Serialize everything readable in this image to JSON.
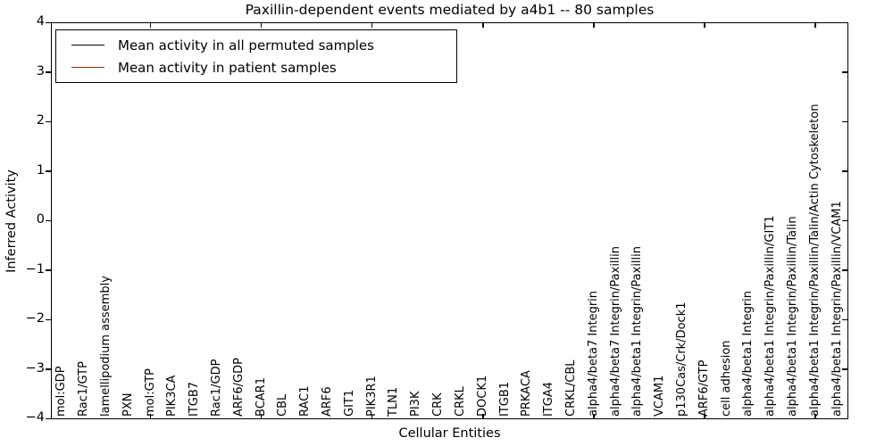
{
  "title": "Paxillin-dependent events mediated by a4b1 -- 80 samples",
  "axes": {
    "ylabel": "Inferred Activity",
    "xlabel": "Cellular Entities",
    "yticks": [
      "4",
      "3",
      "2",
      "1",
      "0",
      "−1",
      "−2",
      "−3",
      "−4"
    ],
    "ylim": [
      -4,
      4
    ]
  },
  "legend": {
    "items": [
      {
        "label": "Mean activity in all permuted samples",
        "color": "#000000"
      },
      {
        "label": "Mean activity in patient samples",
        "color": "#ff0000"
      }
    ]
  },
  "colors": {
    "patient_line": "#ff0000",
    "permuted_line": "#000000",
    "patient_band": "rgba(228,55,55,0.38)",
    "patient_band_inner": "rgba(225,35,35,0.45)",
    "permuted_band": "rgba(0,0,0,0.17)",
    "zero_line": "#000000"
  },
  "chart_data": {
    "type": "area",
    "title": "Paxillin-dependent events mediated by a4b1 -- 80 samples",
    "xlabel": "Cellular Entities",
    "ylabel": "Inferred Activity",
    "ylim": [
      -4,
      4
    ],
    "grid": false,
    "legend_position": "upper left",
    "categories": [
      "mol:GDP",
      "Rac1/GTP",
      "lamellipodium assembly",
      "PXN",
      "mol:GTP",
      "PIK3CA",
      "ITGB7",
      "Rac1/GDP",
      "ARF6/GDP",
      "BCAR1",
      "CBL",
      "RAC1",
      "ARF6",
      "GIT1",
      "PIK3R1",
      "TLN1",
      "PI3K",
      "CRK",
      "CRKL",
      "DOCK1",
      "ITGB1",
      "PRKACA",
      "ITGA4",
      "CRKL/CBL",
      "alpha4/beta7 Integrin",
      "alpha4/beta7 Integrin/Paxillin",
      "alpha4/beta1 Integrin/Paxillin",
      "VCAM1",
      "p130Cas/Crk/Dock1",
      "ARF6/GTP",
      "cell adhesion",
      "alpha4/beta1 Integrin",
      "alpha4/beta1 Integrin/Paxillin/GIT1",
      "alpha4/beta1 Integrin/Paxillin/Talin",
      "alpha4/beta1 Integrin/Paxillin/Talin/Actin Cytoskeleton",
      "alpha4/beta1 Integrin/Paxillin/VCAM1"
    ],
    "series": [
      {
        "name": "Mean activity in all permuted samples",
        "color": "#000000",
        "values": [
          0,
          0,
          0,
          0,
          0,
          0,
          0,
          0,
          0,
          0,
          0,
          0,
          0,
          0,
          0,
          0,
          0,
          0,
          0,
          0,
          0,
          0,
          0,
          0,
          0,
          0,
          0,
          0,
          0,
          0,
          0,
          0,
          0,
          0,
          0,
          0
        ]
      },
      {
        "name": "Mean activity in patient samples",
        "color": "#ff0000",
        "values": [
          -0.03,
          -0.04,
          -0.04,
          -0.03,
          -0.02,
          -0.02,
          -0.02,
          -0.01,
          -0.01,
          -0.01,
          -0.01,
          -0.01,
          -0.01,
          -0.01,
          -0.01,
          0,
          0,
          0,
          0,
          0,
          0,
          0,
          0,
          0.01,
          0.01,
          0.01,
          0.01,
          0.01,
          0.01,
          0.02,
          0.03,
          0.03,
          0.04,
          0.04,
          0.05,
          0.04
        ]
      }
    ],
    "patient_band_upper": [
      0.1,
      0.13,
      0.13,
      0.08,
      0.06,
      0.07,
      0.07,
      0.05,
      0.04,
      0.04,
      0.04,
      0.04,
      0.04,
      0.04,
      0.04,
      0.05,
      0.06,
      0.04,
      0.04,
      0.04,
      0.04,
      0.05,
      0.11,
      0.07,
      0.09,
      0.09,
      0.07,
      0.06,
      0.05,
      0.07,
      0.09,
      0.1,
      0.11,
      0.11,
      0.12,
      0.11
    ],
    "patient_band_lower": [
      -0.16,
      -0.2,
      -0.2,
      -0.12,
      -0.08,
      -0.08,
      -0.07,
      -0.06,
      -0.05,
      -0.04,
      -0.04,
      -0.04,
      -0.04,
      -0.04,
      -0.04,
      -0.04,
      -0.04,
      -0.04,
      -0.04,
      -0.04,
      -0.04,
      -0.04,
      -0.11,
      -0.05,
      -0.07,
      -0.06,
      -0.05,
      -0.05,
      -0.04,
      -0.05,
      -0.05,
      -0.05,
      -0.05,
      -0.05,
      -0.05,
      -0.05
    ],
    "zero_line": 0
  }
}
